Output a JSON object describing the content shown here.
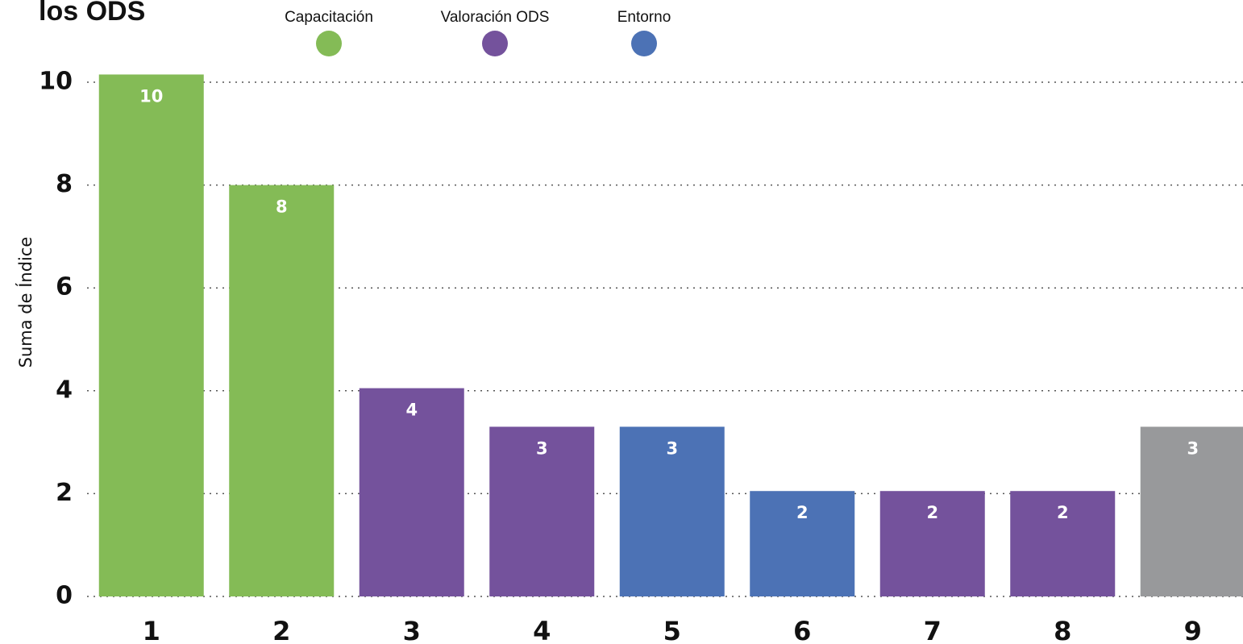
{
  "chart_data": {
    "type": "bar",
    "title": "los ODS",
    "y_label": "Suma de Índice",
    "legend": [
      {
        "name": "Capacitación",
        "color": "#84bb56"
      },
      {
        "name": "Valoración ODS",
        "color": "#74529c"
      },
      {
        "name": "Entorno",
        "color": "#4c72b5"
      }
    ],
    "categories": [
      "1",
      "2",
      "3",
      "4",
      "5",
      "6",
      "7",
      "8",
      "9"
    ],
    "values": [
      10.15,
      8,
      4.05,
      3.3,
      3.3,
      2.05,
      2.05,
      2.05,
      3.3
    ],
    "value_labels": [
      "10",
      "8",
      "4",
      "3",
      "3",
      "2",
      "2",
      "2",
      "3"
    ],
    "colors": [
      "#84bb56",
      "#84bb56",
      "#74529c",
      "#74529c",
      "#4c72b5",
      "#4c72b5",
      "#74529c",
      "#74529c",
      "#98999b"
    ],
    "ylim": [
      0,
      10
    ],
    "yticks": [
      0,
      2,
      4,
      6,
      8,
      10
    ],
    "grid": true
  }
}
